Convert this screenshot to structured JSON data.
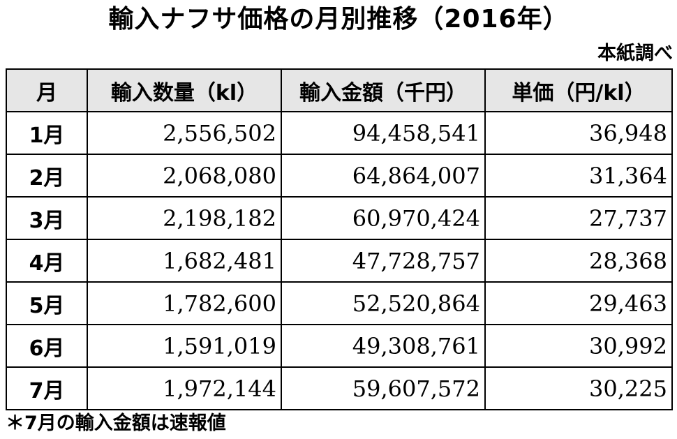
{
  "title": "輸入ナフサ価格の月別推移（2016年）",
  "source": "本紙調べ",
  "table": {
    "headers": [
      "月",
      "輸入数量（kl）",
      "輸入金額（千円）",
      "単価（円/kl）"
    ],
    "rows": [
      [
        "1月",
        "2,556,502",
        "94,458,541",
        "36,948"
      ],
      [
        "2月",
        "2,068,080",
        "64,864,007",
        "31,364"
      ],
      [
        "3月",
        "2,198,182",
        "60,970,424",
        "27,737"
      ],
      [
        "4月",
        "1,682,481",
        "47,728,757",
        "28,368"
      ],
      [
        "5月",
        "1,782,600",
        "52,520,864",
        "29,463"
      ],
      [
        "6月",
        "1,591,019",
        "49,308,761",
        "30,992"
      ],
      [
        "7月",
        "1,972,144",
        "59,607,572",
        "30,225"
      ]
    ]
  },
  "note": "＊7月の輸入金額は速報値"
}
